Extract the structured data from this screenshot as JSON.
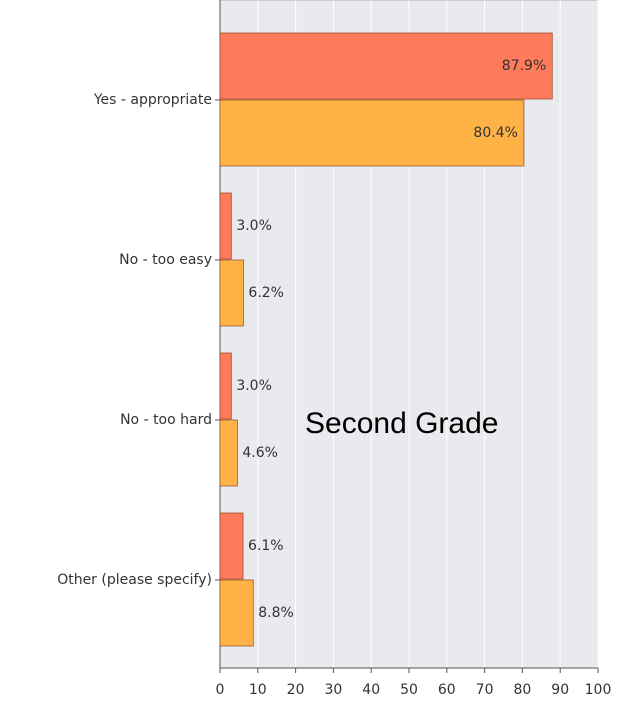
{
  "chart_data": {
    "type": "hbar",
    "categories": [
      "Yes - appropriate",
      "No - too easy",
      "No - too hard",
      "Other (please specify)"
    ],
    "series": [
      {
        "color": "#ff7b5c",
        "values": [
          87.9,
          3.0,
          3.0,
          6.1
        ],
        "value_labels": [
          "87.9%",
          "3.0%",
          "3.0%",
          "6.1%"
        ]
      },
      {
        "color": "#ffb347",
        "values": [
          80.4,
          6.2,
          4.6,
          8.8
        ],
        "value_labels": [
          "80.4%",
          "6.2%",
          "4.6%",
          "8.8%"
        ]
      }
    ],
    "xlim": [
      0,
      100
    ],
    "xticks": [
      0,
      10,
      20,
      30,
      40,
      50,
      60,
      70,
      80,
      90,
      100
    ],
    "grid": true,
    "annotation": "Second Grade"
  }
}
